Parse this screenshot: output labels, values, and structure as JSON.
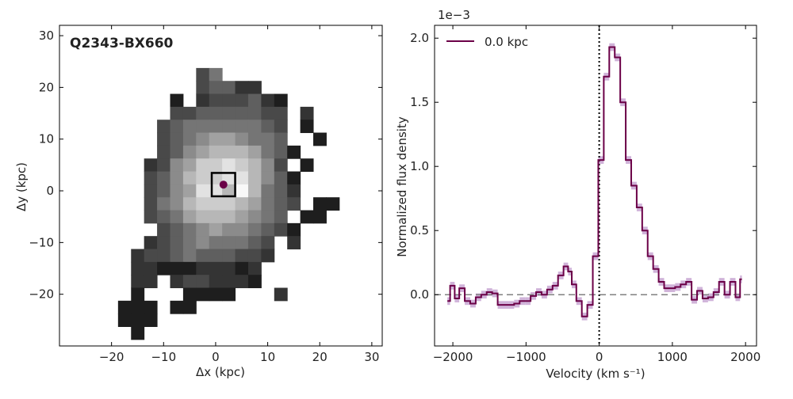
{
  "chart_data": [
    {
      "type": "heatmap",
      "title": "Q2343-BX660",
      "xlabel": "Δx (kpc)",
      "ylabel": "Δy (kpc)",
      "xlim": [
        -30,
        32
      ],
      "ylim": [
        -30,
        32
      ],
      "xticks": [
        -20,
        -10,
        0,
        10,
        20,
        30
      ],
      "yticks": [
        -20,
        -10,
        0,
        10,
        20,
        30
      ],
      "xtick_labels": [
        "−20",
        "−10",
        "0",
        "10",
        "20",
        "30"
      ],
      "ytick_labels": [
        "−20",
        "−10",
        "0",
        "10",
        "20",
        "30"
      ],
      "cell_size_kpc": 2.5,
      "colormap": "greys (black = faint, white = bright)",
      "marker": {
        "x": 1.5,
        "y": 1.2,
        "color": "#6b0047",
        "box": "black square"
      },
      "legend": "none",
      "grid": false
    },
    {
      "type": "line",
      "drawstyle": "steps-mid",
      "xlabel": "Velocity (km s⁻¹)",
      "ylabel": "Normalized flux density",
      "scale_label": "1e−3",
      "xlim": [
        -2250,
        2150
      ],
      "ylim": [
        -0.4,
        2.1
      ],
      "xticks": [
        -2000,
        -1000,
        0,
        1000,
        2000
      ],
      "yticks": [
        0.0,
        0.5,
        1.0,
        1.5,
        2.0
      ],
      "xtick_labels": [
        "−2000",
        "−1000",
        "0",
        "1000",
        "2000"
      ],
      "ytick_labels": [
        "0.0",
        "0.5",
        "1.0",
        "1.5",
        "2.0"
      ],
      "legend": "top-left",
      "grid": false,
      "vertical_line": {
        "x": 0,
        "style": "dotted",
        "color": "#000000"
      },
      "horizontal_line": {
        "y": 0,
        "style": "dashed",
        "color": "#808080"
      },
      "series": [
        {
          "name": "0.0 kpc",
          "color": "#6b0047",
          "error_color": "#c8a6d2",
          "x": [
            -2075,
            -2000,
            -1950,
            -1875,
            -1800,
            -1725,
            -1650,
            -1575,
            -1500,
            -1425,
            -1350,
            -1275,
            -1200,
            -1125,
            -1050,
            -975,
            -900,
            -825,
            -750,
            -675,
            -600,
            -525,
            -450,
            -400,
            -350,
            -275,
            -200,
            -125,
            -50,
            25,
            100,
            175,
            250,
            325,
            400,
            475,
            550,
            625,
            700,
            775,
            850,
            925,
            1000,
            1075,
            1150,
            1225,
            1300,
            1375,
            1450,
            1525,
            1600,
            1675,
            1750,
            1825,
            1900,
            1950
          ],
          "y": [
            -0.05,
            0.07,
            -0.03,
            0.05,
            -0.05,
            -0.07,
            -0.02,
            0.0,
            0.02,
            0.01,
            -0.08,
            -0.08,
            -0.08,
            -0.07,
            -0.05,
            -0.05,
            -0.01,
            0.02,
            0.0,
            0.04,
            0.07,
            0.15,
            0.22,
            0.18,
            0.08,
            -0.05,
            -0.17,
            -0.08,
            0.3,
            1.05,
            1.7,
            1.93,
            1.85,
            1.5,
            1.05,
            0.85,
            0.68,
            0.5,
            0.3,
            0.2,
            0.1,
            0.05,
            0.05,
            0.06,
            0.08,
            0.1,
            -0.04,
            0.03,
            -0.03,
            -0.02,
            0.02,
            0.1,
            0.0,
            0.1,
            -0.02,
            0.12
          ],
          "error": 0.03
        }
      ]
    }
  ]
}
